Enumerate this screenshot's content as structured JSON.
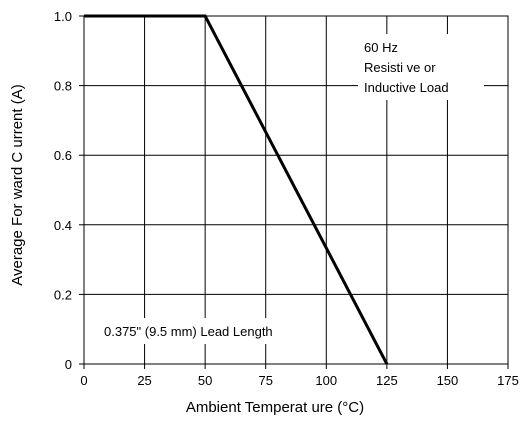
{
  "chart_data": {
    "type": "line",
    "title": "",
    "xlabel": "Ambient Temperat ure (°C)",
    "ylabel": "Average For ward C urrent (A)",
    "xlim": [
      0,
      175
    ],
    "ylim": [
      0,
      1.0
    ],
    "x_ticks": [
      "0",
      "25",
      "50",
      "75",
      "100",
      "125",
      "150",
      "175"
    ],
    "y_ticks": [
      "0",
      "0.2",
      "0.4",
      "0.6",
      "0.8",
      "1.0"
    ],
    "grid": true,
    "series": [
      {
        "x": [
          0,
          50,
          125
        ],
        "y": [
          1.0,
          1.0,
          0
        ]
      }
    ],
    "annotations": [
      "60 Hz",
      "Resisti ve or",
      "Inductive Load",
      "0.375\" (9.5 mm) Lead Length"
    ]
  }
}
